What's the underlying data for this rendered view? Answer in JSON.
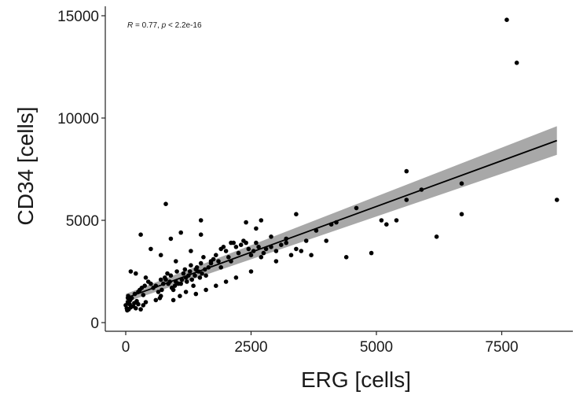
{
  "chart_data": {
    "type": "scatter",
    "xlabel": "ERG [cells]",
    "ylabel": "CD34 [cells]",
    "annotation": {
      "r_label": "R",
      "r_value": " = 0.77, ",
      "p_label": "p",
      "p_value": " < 2.2e-16"
    },
    "xlim": [
      -200,
      8700
    ],
    "ylim": [
      0,
      15200
    ],
    "x_ticks": [
      0,
      2500,
      5000,
      7500
    ],
    "x_tick_labels": [
      "0",
      "2500",
      "5000",
      "7500"
    ],
    "y_ticks": [
      0,
      5000,
      10000,
      15000
    ],
    "y_tick_labels": [
      "0",
      "5000",
      "10000",
      "15000"
    ],
    "grid": false,
    "colors": {
      "points": "#000000",
      "fit_line": "#000000",
      "confidence_band": "#999999",
      "axis": "#222222"
    },
    "regression": {
      "x_start": 0,
      "x_end": 8600,
      "fit": [
        1200,
        8900
      ],
      "band_lower": [
        1000,
        8200
      ],
      "band_upper": [
        1400,
        9600
      ]
    },
    "points": [
      [
        0,
        850
      ],
      [
        20,
        700
      ],
      [
        40,
        1000
      ],
      [
        60,
        650
      ],
      [
        80,
        900
      ],
      [
        100,
        750
      ],
      [
        120,
        1200
      ],
      [
        50,
        1300
      ],
      [
        150,
        800
      ],
      [
        200,
        700
      ],
      [
        250,
        900
      ],
      [
        300,
        650
      ],
      [
        350,
        850
      ],
      [
        30,
        600
      ],
      [
        90,
        1100
      ],
      [
        170,
        950
      ],
      [
        220,
        1050
      ],
      [
        100,
        2500
      ],
      [
        180,
        1400
      ],
      [
        250,
        1500
      ],
      [
        280,
        1600
      ],
      [
        320,
        1700
      ],
      [
        380,
        1800
      ],
      [
        400,
        2200
      ],
      [
        450,
        2000
      ],
      [
        500,
        1900
      ],
      [
        550,
        1700
      ],
      [
        600,
        1800
      ],
      [
        650,
        1500
      ],
      [
        680,
        1200
      ],
      [
        700,
        1300
      ],
      [
        720,
        1600
      ],
      [
        750,
        1900
      ],
      [
        780,
        2200
      ],
      [
        800,
        2100
      ],
      [
        830,
        2400
      ],
      [
        850,
        1900
      ],
      [
        880,
        2000
      ],
      [
        900,
        2300
      ],
      [
        920,
        1700
      ],
      [
        950,
        1600
      ],
      [
        980,
        1800
      ],
      [
        1000,
        2000
      ],
      [
        1020,
        2500
      ],
      [
        1050,
        1900
      ],
      [
        1080,
        1300
      ],
      [
        1100,
        1900
      ],
      [
        1120,
        2100
      ],
      [
        1150,
        2400
      ],
      [
        1180,
        2600
      ],
      [
        1200,
        2200
      ],
      [
        1220,
        2000
      ],
      [
        1250,
        2300
      ],
      [
        1280,
        2500
      ],
      [
        1300,
        2800
      ],
      [
        1320,
        2100
      ],
      [
        1350,
        1800
      ],
      [
        1380,
        2300
      ],
      [
        1400,
        2600
      ],
      [
        1420,
        2700
      ],
      [
        1450,
        2500
      ],
      [
        1480,
        2200
      ],
      [
        1500,
        2900
      ],
      [
        1520,
        2400
      ],
      [
        1550,
        3200
      ],
      [
        1580,
        2600
      ],
      [
        1600,
        2300
      ],
      [
        1650,
        2700
      ],
      [
        1700,
        2900
      ],
      [
        1750,
        3100
      ],
      [
        1800,
        3300
      ],
      [
        1850,
        3000
      ],
      [
        1900,
        3600
      ],
      [
        1950,
        3700
      ],
      [
        2000,
        3500
      ],
      [
        2050,
        3200
      ],
      [
        2100,
        3000
      ],
      [
        2150,
        3900
      ],
      [
        2200,
        3700
      ],
      [
        2250,
        3400
      ],
      [
        2300,
        3800
      ],
      [
        2350,
        4000
      ],
      [
        2400,
        3900
      ],
      [
        2450,
        3600
      ],
      [
        2500,
        3300
      ],
      [
        2550,
        3500
      ],
      [
        2600,
        3900
      ],
      [
        2650,
        3700
      ],
      [
        2700,
        3200
      ],
      [
        2750,
        3400
      ],
      [
        2800,
        3600
      ],
      [
        2900,
        3700
      ],
      [
        3000,
        3500
      ],
      [
        3100,
        3800
      ],
      [
        3200,
        3900
      ],
      [
        3300,
        3300
      ],
      [
        3400,
        3600
      ],
      [
        300,
        4300
      ],
      [
        500,
        3600
      ],
      [
        700,
        3300
      ],
      [
        900,
        4100
      ],
      [
        1100,
        4400
      ],
      [
        1300,
        3500
      ],
      [
        1500,
        4300
      ],
      [
        1700,
        3000
      ],
      [
        1900,
        2700
      ],
      [
        2100,
        3900
      ],
      [
        2400,
        4900
      ],
      [
        2600,
        4600
      ],
      [
        2700,
        5000
      ],
      [
        2900,
        4200
      ],
      [
        3200,
        4100
      ],
      [
        3400,
        5300
      ],
      [
        3600,
        4000
      ],
      [
        3700,
        3300
      ],
      [
        3800,
        4500
      ],
      [
        4000,
        4000
      ],
      [
        4100,
        4800
      ],
      [
        4200,
        4900
      ],
      [
        4400,
        3200
      ],
      [
        4600,
        5600
      ],
      [
        4900,
        3400
      ],
      [
        5100,
        5000
      ],
      [
        5200,
        4800
      ],
      [
        5400,
        5000
      ],
      [
        5600,
        6000
      ],
      [
        5600,
        7400
      ],
      [
        5900,
        6500
      ],
      [
        6200,
        4200
      ],
      [
        6700,
        6800
      ],
      [
        6700,
        5300
      ],
      [
        8600,
        6000
      ],
      [
        7600,
        14800
      ],
      [
        7800,
        12700
      ],
      [
        800,
        5800
      ],
      [
        1500,
        5000
      ],
      [
        200,
        2400
      ],
      [
        50,
        1200
      ],
      [
        1000,
        3000
      ],
      [
        2000,
        2000
      ],
      [
        2200,
        2200
      ],
      [
        600,
        1100
      ],
      [
        400,
        1000
      ],
      [
        1200,
        1500
      ],
      [
        1400,
        1400
      ],
      [
        1600,
        1600
      ],
      [
        1800,
        1800
      ],
      [
        950,
        1100
      ],
      [
        2500,
        2500
      ],
      [
        3000,
        3000
      ],
      [
        3500,
        3500
      ],
      [
        700,
        2100
      ],
      [
        350,
        1350
      ]
    ]
  }
}
